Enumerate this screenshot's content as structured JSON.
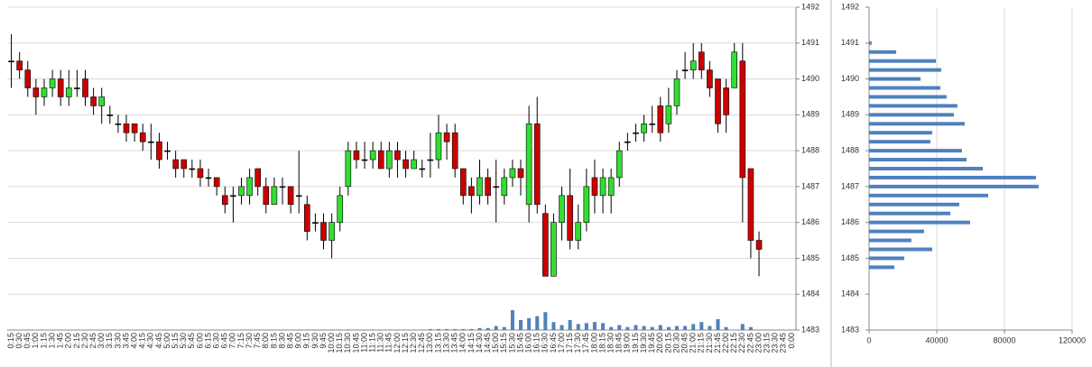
{
  "chart_data": [
    {
      "type": "candlestick",
      "categories": [
        "0:15",
        "0:30",
        "0:45",
        "1:00",
        "1:15",
        "1:30",
        "1:45",
        "2:00",
        "2:15",
        "2:30",
        "2:45",
        "3:00",
        "3:15",
        "3:30",
        "3:45",
        "4:00",
        "4:15",
        "4:30",
        "4:45",
        "5:00",
        "5:15",
        "5:30",
        "5:45",
        "6:00",
        "6:15",
        "6:30",
        "6:45",
        "7:00",
        "7:15",
        "7:30",
        "7:45",
        "8:00",
        "8:15",
        "8:30",
        "8:45",
        "9:00",
        "9:15",
        "9:30",
        "9:45",
        "10:00",
        "10:15",
        "10:30",
        "10:45",
        "11:00",
        "11:15",
        "11:30",
        "11:45",
        "12:00",
        "12:15",
        "12:30",
        "12:45",
        "13:00",
        "13:15",
        "13:30",
        "13:45",
        "14:00",
        "14:15",
        "14:30",
        "14:45",
        "15:00",
        "15:15",
        "15:30",
        "15:45",
        "16:00",
        "16:15",
        "16:30",
        "16:45",
        "17:00",
        "17:15",
        "17:30",
        "17:45",
        "18:00",
        "18:15",
        "18:30",
        "18:45",
        "19:00",
        "19:15",
        "19:30",
        "19:45",
        "20:00",
        "20:15",
        "20:30",
        "20:45",
        "21:00",
        "21:15",
        "21:30",
        "21:45",
        "22:00",
        "22:15",
        "22:30",
        "22:45",
        "23:00",
        "23:15",
        "23:30",
        "23:45",
        "0:00"
      ],
      "open": [
        1490.5,
        1490.5,
        1490.25,
        1489.75,
        1489.5,
        1489.75,
        1490,
        1489.5,
        1489.75,
        1490,
        1489.5,
        1489.25,
        1489,
        1488.75,
        1488.75,
        1488.75,
        1488.5,
        1488.25,
        1488.25,
        1488,
        1487.75,
        1487.75,
        1487.5,
        1487.5,
        1487.25,
        1487.25,
        1486.75,
        1486.75,
        1486.75,
        1486.75,
        1487.5,
        1487,
        1486.5,
        1487,
        1487,
        1486.75,
        1486.5,
        1486,
        1486,
        1485.5,
        1486,
        1487,
        1488,
        1487.75,
        1487.75,
        1488,
        1487.5,
        1488,
        1487.75,
        1487.5,
        1487.5,
        1487.75,
        1487.75,
        1488.5,
        1488.5,
        1487.5,
        1487,
        1486.75,
        1487.25,
        1487,
        1486.75,
        1487.25,
        1487.5,
        1486.5,
        1488.75,
        1486.25,
        1484.5,
        1486,
        1486.75,
        1485.5,
        1486,
        1487.25,
        1486.75,
        1486.75,
        1487.25,
        1488.25,
        1488.5,
        1488.5,
        1488.75,
        1489.25,
        1488.75,
        1489.25,
        1490.25,
        1490.25,
        1490.75,
        1490.25,
        1490,
        1489.75,
        1489.75,
        1490.5,
        1487.5,
        1485.5,
        null,
        null,
        null,
        null
      ],
      "high": [
        1491.25,
        1490.75,
        1490.5,
        1490,
        1490,
        1490.25,
        1490.25,
        1490.25,
        1490.25,
        1490.25,
        1489.75,
        1489.75,
        1489.25,
        1489,
        1489,
        1488.75,
        1488.75,
        1488.75,
        1488.5,
        1488.25,
        1488,
        1487.75,
        1487.75,
        1487.75,
        1487.5,
        1487.25,
        1487,
        1487,
        1487.25,
        1487.5,
        1487.5,
        1487.25,
        1487.25,
        1487.25,
        1487,
        1488,
        1486.75,
        1486.25,
        1486.25,
        1486.25,
        1487,
        1488.25,
        1488.25,
        1488.25,
        1488.25,
        1488.25,
        1488.25,
        1488.25,
        1488,
        1488,
        1487.75,
        1488.5,
        1489,
        1488.75,
        1488.75,
        1487.5,
        1487.25,
        1487.75,
        1487.5,
        1487.75,
        1487.5,
        1487.75,
        1487.75,
        1489.25,
        1489.5,
        1486.5,
        1486.25,
        1487,
        1487.5,
        1486.5,
        1487.5,
        1487.75,
        1487.5,
        1487.5,
        1488.25,
        1488.5,
        1488.75,
        1489,
        1489.25,
        1489.5,
        1489.75,
        1490.25,
        1490.75,
        1491,
        1491,
        1490.5,
        1490,
        1490,
        1491,
        1491,
        1487.5,
        1485.75,
        null,
        null,
        null,
        null
      ],
      "low": [
        1489.75,
        1490,
        1489.5,
        1489,
        1489.25,
        1489.5,
        1489.25,
        1489.25,
        1489.5,
        1489.25,
        1489,
        1488.75,
        1488.75,
        1488.5,
        1488.25,
        1488.25,
        1488,
        1487.75,
        1487.5,
        1487.75,
        1487.25,
        1487.25,
        1487.25,
        1487,
        1487,
        1486.75,
        1486.25,
        1486,
        1486.5,
        1486.5,
        1486.75,
        1486.25,
        1486.5,
        1486.5,
        1486.25,
        1486.25,
        1485.5,
        1485.75,
        1485.25,
        1485,
        1485.75,
        1486.75,
        1487.5,
        1487.5,
        1487.5,
        1487.5,
        1487.25,
        1487.25,
        1487.25,
        1487.5,
        1487.25,
        1487.25,
        1487.5,
        1487.75,
        1487.25,
        1486.5,
        1486.25,
        1486.5,
        1486.5,
        1486,
        1486.5,
        1487,
        1486.75,
        1486,
        1486.25,
        1484.5,
        1484.5,
        1485.5,
        1485.25,
        1485.25,
        1485.75,
        1486.25,
        1486.25,
        1486.25,
        1487,
        1488,
        1488.25,
        1488.25,
        1488.5,
        1488.25,
        1488.5,
        1489,
        1490,
        1490,
        1490,
        1489.5,
        1488.5,
        1488.5,
        1489.75,
        1486,
        1485,
        1484.5,
        null,
        null,
        null,
        null
      ],
      "close": [
        1490.5,
        1490.25,
        1489.75,
        1489.5,
        1489.75,
        1490,
        1489.5,
        1489.75,
        1489.75,
        1489.5,
        1489.25,
        1489.5,
        1489,
        1488.75,
        1488.5,
        1488.5,
        1488.25,
        1488.25,
        1487.75,
        1488,
        1487.5,
        1487.5,
        1487.5,
        1487.25,
        1487.25,
        1487,
        1486.5,
        1486.75,
        1487,
        1487.25,
        1487,
        1486.5,
        1487,
        1487,
        1486.5,
        1486.75,
        1485.75,
        1486,
        1485.5,
        1486,
        1486.75,
        1488,
        1487.75,
        1487.75,
        1488,
        1487.5,
        1488,
        1487.75,
        1487.5,
        1487.75,
        1487.5,
        1487.75,
        1488.5,
        1488.25,
        1487.5,
        1486.75,
        1486.75,
        1487.25,
        1486.75,
        1487,
        1487.25,
        1487.5,
        1487.25,
        1488.75,
        1486.5,
        1484.5,
        1486,
        1486.75,
        1485.5,
        1486,
        1487,
        1486.75,
        1487.25,
        1487.25,
        1488,
        1488.25,
        1488.5,
        1488.75,
        1488.75,
        1488.5,
        1489.25,
        1490,
        1490.25,
        1490.5,
        1490.25,
        1489.75,
        1488.75,
        1489,
        1490.75,
        1487.25,
        1485.5,
        1485.25,
        null,
        null,
        null,
        null
      ],
      "volume": [
        0,
        0,
        0,
        0,
        0,
        0,
        0,
        0,
        0,
        0,
        0,
        0,
        0,
        0,
        0,
        0,
        0,
        0,
        0,
        0,
        0,
        0,
        0,
        0,
        0,
        0,
        0,
        0,
        0,
        0,
        0,
        0,
        0,
        0,
        0,
        0.5,
        0.5,
        0.5,
        0.5,
        0.5,
        0.5,
        0.5,
        0.5,
        0.5,
        0.5,
        0.3,
        0.3,
        0.3,
        0.3,
        0.3,
        0.3,
        1,
        1,
        1,
        1,
        1,
        1,
        2,
        2,
        4,
        3,
        20,
        10,
        12,
        14,
        18,
        8,
        5,
        10,
        6,
        7,
        8,
        7,
        3,
        5,
        3,
        5,
        4,
        3,
        5,
        3,
        4,
        4,
        6,
        8,
        4,
        11,
        3,
        0,
        6,
        3,
        0,
        null,
        null,
        null,
        null
      ],
      "up_color": "#33dd33",
      "down_color": "#cc0000",
      "volume_color": "#4f81bd",
      "ylim": [
        1483,
        1492
      ],
      "yticks": [
        1483,
        1484,
        1485,
        1486,
        1487,
        1488,
        1489,
        1490,
        1491,
        1492
      ],
      "grid": true
    },
    {
      "type": "hbar",
      "y": [
        1491,
        1490.75,
        1490.5,
        1490.25,
        1490,
        1489.75,
        1489.5,
        1489.25,
        1489,
        1488.75,
        1488.5,
        1488.25,
        1488,
        1487.75,
        1487.5,
        1487.25,
        1487,
        1486.75,
        1486.5,
        1486.25,
        1486,
        1485.75,
        1485.5,
        1485.25,
        1485,
        1484.75
      ],
      "values": [
        1500,
        16000,
        39500,
        42600,
        30400,
        42100,
        45800,
        52200,
        50100,
        56500,
        37300,
        36200,
        54900,
        57600,
        67200,
        98600,
        100200,
        70400,
        53300,
        48000,
        59700,
        32500,
        25000,
        37300,
        20800,
        14900
      ],
      "color": "#4f81bd",
      "ylim": [
        1483,
        1492
      ],
      "yticks": [
        1483,
        1484,
        1485,
        1486,
        1487,
        1488,
        1489,
        1490,
        1491,
        1492
      ],
      "xlim": [
        0,
        120000
      ],
      "xticks": [
        0,
        40000,
        80000,
        120000
      ],
      "grid": true
    }
  ]
}
